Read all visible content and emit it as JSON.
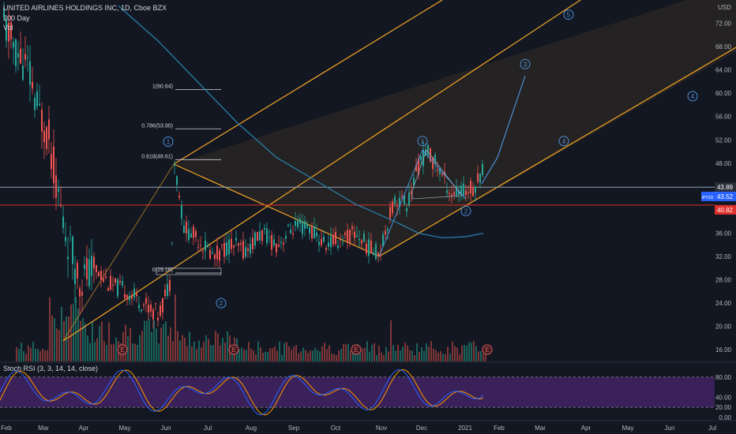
{
  "header": {
    "title": "UNITED AIRLINES HOLDINGS INC, 1D, Cboe BZX",
    "indicator": "200 Day",
    "volume": "Vol"
  },
  "currency": "USD",
  "stoch_label": "Stoch RSI (3, 3, 14, 14, close)",
  "price_badges": {
    "current": "43.89",
    "fifty_two": "43.52",
    "line": "40.82",
    "tag": "IPTZD"
  },
  "colors": {
    "background": "#131722",
    "up": "#26a69a",
    "down": "#ef5350",
    "pitchfork": "#f5a623",
    "ma200": "#2a7da8",
    "projection": "#4b8fd6",
    "stoch_k": "#2962ff",
    "stoch_d": "#ff9800",
    "stoch_band": "#5b2a86",
    "hline_red": "#e0302b"
  },
  "chart_data": {
    "type": "candlestick",
    "title": "UNITED AIRLINES HOLDINGS INC, 1D, Cboe BZX",
    "y_axis_label": "USD",
    "price_ticks": [
      "72.00",
      "68.00",
      "64.00",
      "60.00",
      "56.00",
      "52.00",
      "48.00",
      "44.00",
      "40.00",
      "36.00",
      "32.00",
      "28.00",
      "24.00",
      "20.00",
      "16.00"
    ],
    "price_range": [
      14,
      76
    ],
    "x_ticks": [
      "Feb",
      "Mar",
      "Apr",
      "May",
      "Jun",
      "Jul",
      "Aug",
      "Sep",
      "Oct",
      "Nov",
      "Dec",
      "2021",
      "Feb",
      "Mar",
      "Apr",
      "May",
      "Jun",
      "Jul"
    ],
    "price_path": [
      [
        0,
        73.0
      ],
      [
        20,
        67
      ],
      [
        35,
        64
      ],
      [
        45,
        58
      ],
      [
        60,
        53
      ],
      [
        80,
        37
      ],
      [
        100,
        28
      ],
      [
        120,
        30
      ],
      [
        140,
        27
      ],
      [
        160,
        26
      ],
      [
        180,
        24
      ],
      [
        200,
        22
      ],
      [
        215,
        28
      ],
      [
        220,
        48
      ],
      [
        232,
        37
      ],
      [
        250,
        35
      ],
      [
        270,
        32
      ],
      [
        290,
        34
      ],
      [
        310,
        33
      ],
      [
        330,
        36
      ],
      [
        350,
        34
      ],
      [
        370,
        37
      ],
      [
        390,
        37
      ],
      [
        410,
        34
      ],
      [
        430,
        35
      ],
      [
        450,
        36
      ],
      [
        470,
        33
      ],
      [
        480,
        33
      ],
      [
        490,
        38
      ],
      [
        500,
        42
      ],
      [
        515,
        41
      ],
      [
        530,
        48
      ],
      [
        540,
        50
      ],
      [
        555,
        47
      ],
      [
        570,
        43
      ],
      [
        585,
        43
      ],
      [
        600,
        44
      ],
      [
        610,
        47
      ]
    ],
    "ma200": [
      [
        150,
        75
      ],
      [
        200,
        69
      ],
      [
        250,
        62
      ],
      [
        300,
        55
      ],
      [
        350,
        49
      ],
      [
        400,
        45
      ],
      [
        450,
        41
      ],
      [
        500,
        38
      ],
      [
        530,
        36
      ],
      [
        560,
        35.2
      ],
      [
        590,
        35.4
      ],
      [
        612,
        36
      ]
    ],
    "projection": [
      [
        610,
        44.5
      ],
      [
        630,
        49
      ],
      [
        650,
        57
      ],
      [
        665,
        63
      ]
    ],
    "fib_levels": [
      {
        "label": "1(60.64)",
        "value": 60.64
      },
      {
        "label": "0.786(53.90)",
        "value": 53.9
      },
      {
        "label": "0.618(48.61)",
        "value": 48.61
      },
      {
        "label": "0(29.16)",
        "value": 29.16
      }
    ],
    "horizontal_lines": [
      {
        "value": 43.89,
        "color": "#8fa3b5"
      },
      {
        "value": 40.82,
        "color": "#e0302b"
      }
    ],
    "wave_labels": [
      {
        "text": "1",
        "x": 213,
        "y": 51.7
      },
      {
        "text": "2",
        "x": 280,
        "y": 24.0
      },
      {
        "text": "1",
        "x": 535,
        "y": 51.8
      },
      {
        "text": "2",
        "x": 590,
        "y": 39.8
      },
      {
        "text": "3",
        "x": 665,
        "y": 65.0
      },
      {
        "text": "4",
        "x": 714,
        "y": 51.8
      },
      {
        "text": "5",
        "x": 720,
        "y": 73.5
      },
      {
        "text": "4",
        "x": 877,
        "y": 59.5
      }
    ],
    "earnings_markers": [
      {
        "x": 155,
        "text": "E"
      },
      {
        "x": 296,
        "text": "E"
      },
      {
        "x": 451,
        "text": "E"
      },
      {
        "x": 617,
        "text": "E"
      }
    ],
    "stoch_rsi": {
      "ticks": [
        "80.00",
        "40.00",
        "20.00",
        "0.00"
      ],
      "band": [
        20,
        80
      ]
    }
  }
}
